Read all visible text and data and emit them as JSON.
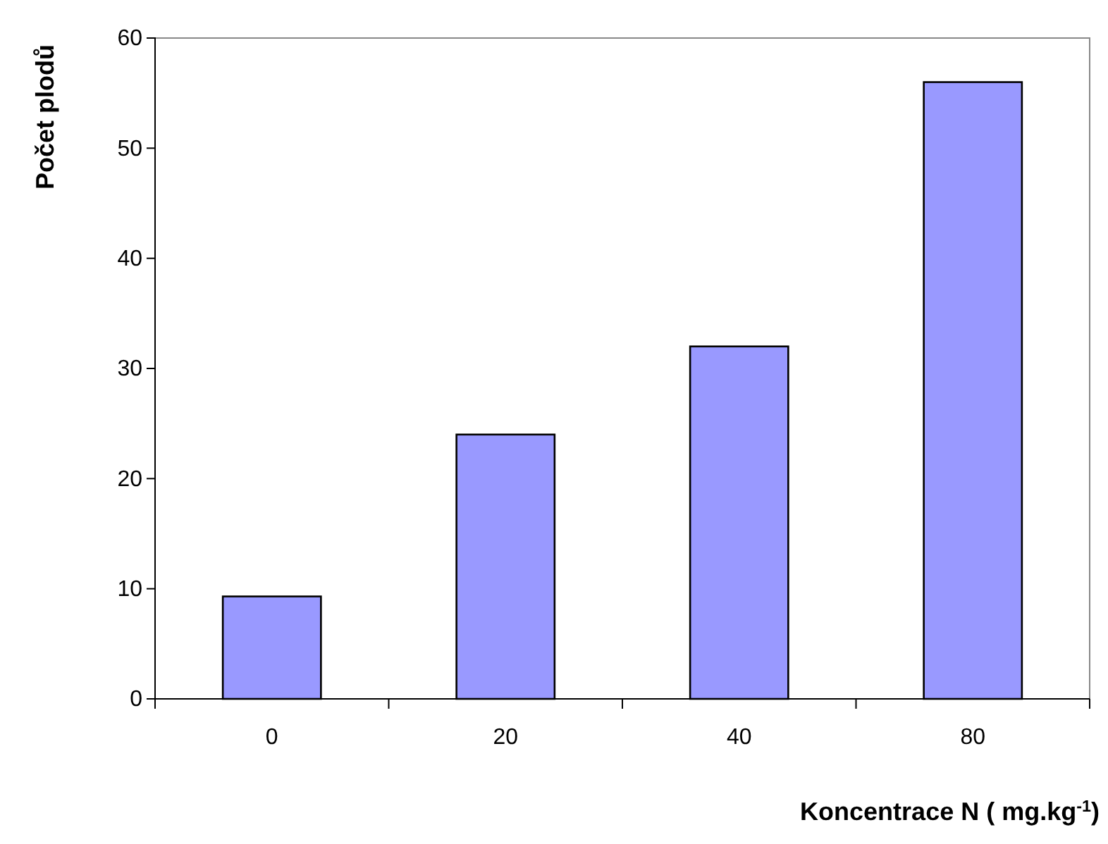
{
  "chart_data": {
    "type": "bar",
    "xlabel": "Koncentrace N ( mg.kg$^{-1}$)",
    "ylabel": "Počet plodů",
    "categories": [
      "0",
      "20",
      "40",
      "80"
    ],
    "values": [
      9.3,
      24,
      32,
      56
    ],
    "color": "#9999ff",
    "ylim": [
      0,
      60
    ],
    "yticks": [
      0,
      10,
      20,
      30,
      40,
      50,
      60
    ],
    "grid": false
  }
}
